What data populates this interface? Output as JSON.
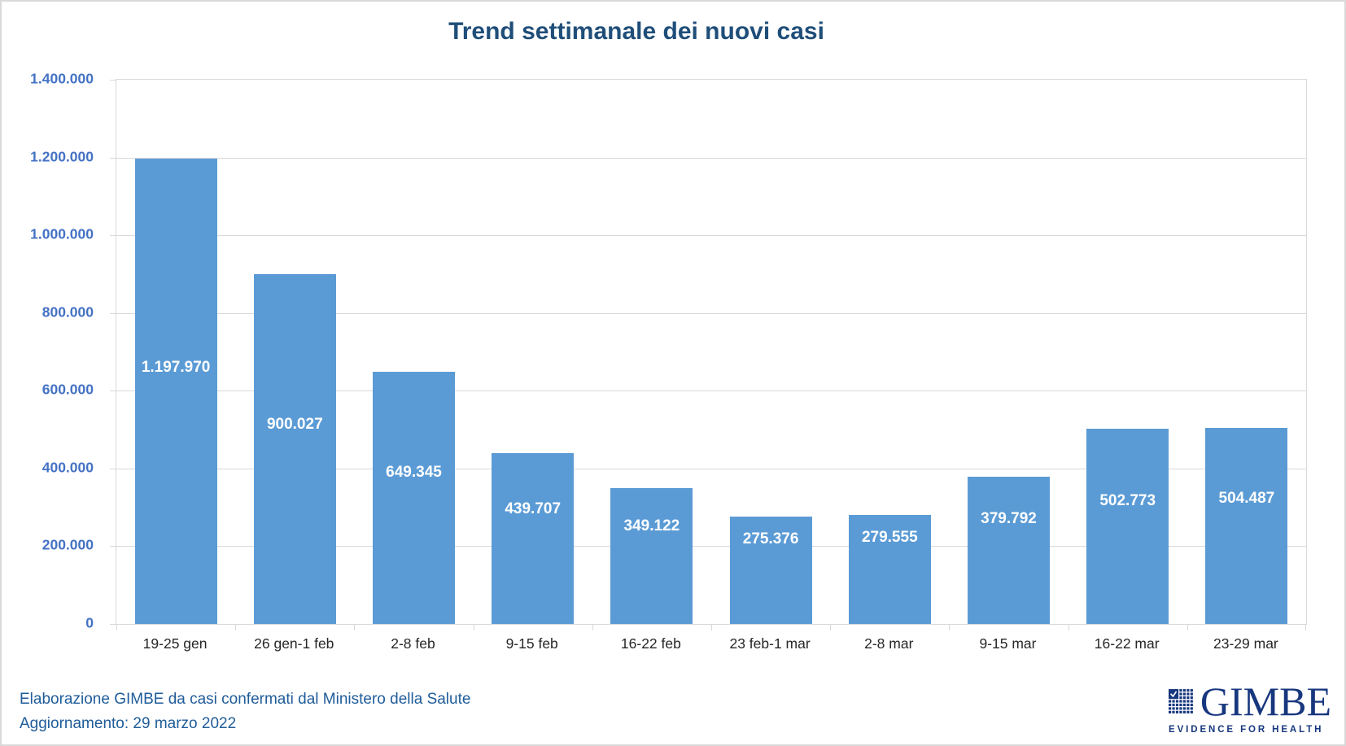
{
  "chart_data": {
    "type": "bar",
    "title": "Trend settimanale dei nuovi casi",
    "categories": [
      "19-25 gen",
      "26 gen-1 feb",
      "2-8 feb",
      "9-15 feb",
      "16-22 feb",
      "23 feb-1 mar",
      "2-8 mar",
      "9-15 mar",
      "16-22 mar",
      "23-29 mar"
    ],
    "values": [
      1197970,
      900027,
      649345,
      439707,
      349122,
      275376,
      279555,
      379792,
      502773,
      504487
    ],
    "value_labels": [
      "1.197.970",
      "900.027",
      "649.345",
      "439.707",
      "349.122",
      "275.376",
      "279.555",
      "379.792",
      "502.773",
      "504.487"
    ],
    "xlabel": "",
    "ylabel": "",
    "ylim": [
      0,
      1400000
    ],
    "y_tick_step": 200000,
    "y_tick_labels": [
      "1.400.000",
      "1.200.000",
      "1.000.000",
      "800.000",
      "600.000",
      "400.000",
      "200.000",
      "0"
    ],
    "grid": true,
    "legend_position": "none"
  },
  "footer": {
    "source": "Elaborazione GIMBE da casi confermati dal Ministero della Salute",
    "update": "Aggiornamento: 29 marzo 2022"
  },
  "logo": {
    "wordmark": "GIMBE",
    "tagline": "EVIDENCE FOR HEALTH"
  },
  "colors": {
    "title": "#1F4E79",
    "y_axis_labels": "#4472C4",
    "x_axis_labels": "#262626",
    "bar": "#5B9BD5",
    "bar_value_labels": "#FFFFFF",
    "gridlines": "#D9D9D9",
    "footer_text": "#1F5C99",
    "logo": "#17377E"
  }
}
